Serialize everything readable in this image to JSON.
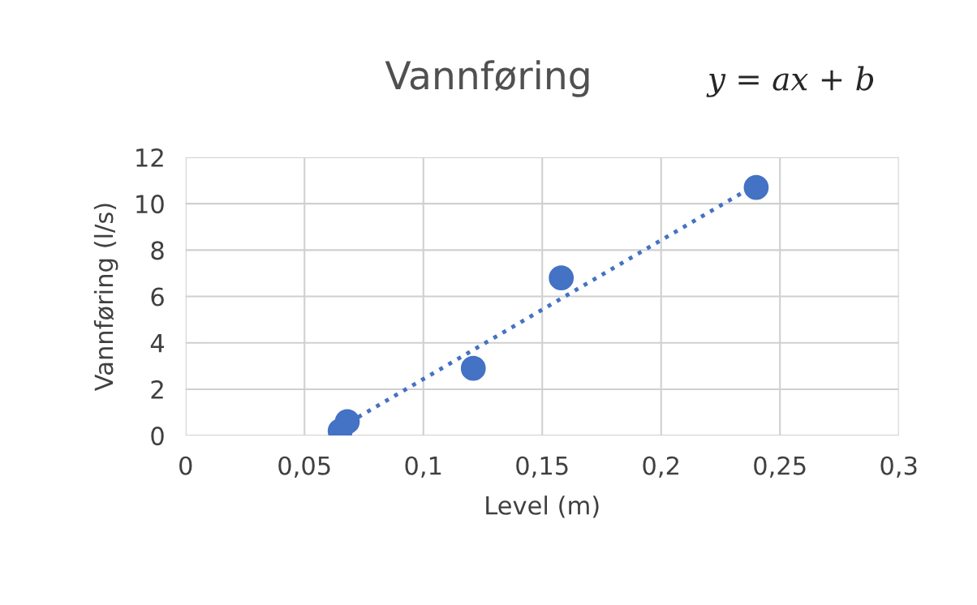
{
  "chart_data": {
    "type": "scatter",
    "title": "Vannføring",
    "xlabel": "Level (m)",
    "ylabel": "Vannføring (l/s)",
    "annotations": [
      "y = ax + b"
    ],
    "series": [
      {
        "color": "#4472c4",
        "x": [
          0.065,
          0.068,
          0.121,
          0.158,
          0.24
        ],
        "values": [
          0.2,
          0.6,
          2.9,
          6.8,
          10.7
        ],
        "marker": "circle"
      },
      {
        "type": "line",
        "color": "#4472c4",
        "x": [
          0.065,
          0.24
        ],
        "values": [
          0.34,
          10.82
        ],
        "line_style": "dotted",
        "marker": "none"
      }
    ],
    "xlim": [
      0,
      0.3
    ],
    "ylim": [
      0,
      12
    ],
    "xticks": [
      0,
      {
        "value": 0.05,
        "label": "0,05"
      },
      {
        "value": 0.1,
        "label": "0,1"
      },
      {
        "value": 0.15,
        "label": "0,15"
      },
      {
        "value": 0.2,
        "label": "0,2"
      },
      {
        "value": 0.25,
        "label": "0,25"
      },
      {
        "value": 0.3,
        "label": "0,3"
      }
    ],
    "yticks": [
      0,
      2,
      4,
      6,
      8,
      10,
      12
    ],
    "grid": true,
    "legend": false
  }
}
